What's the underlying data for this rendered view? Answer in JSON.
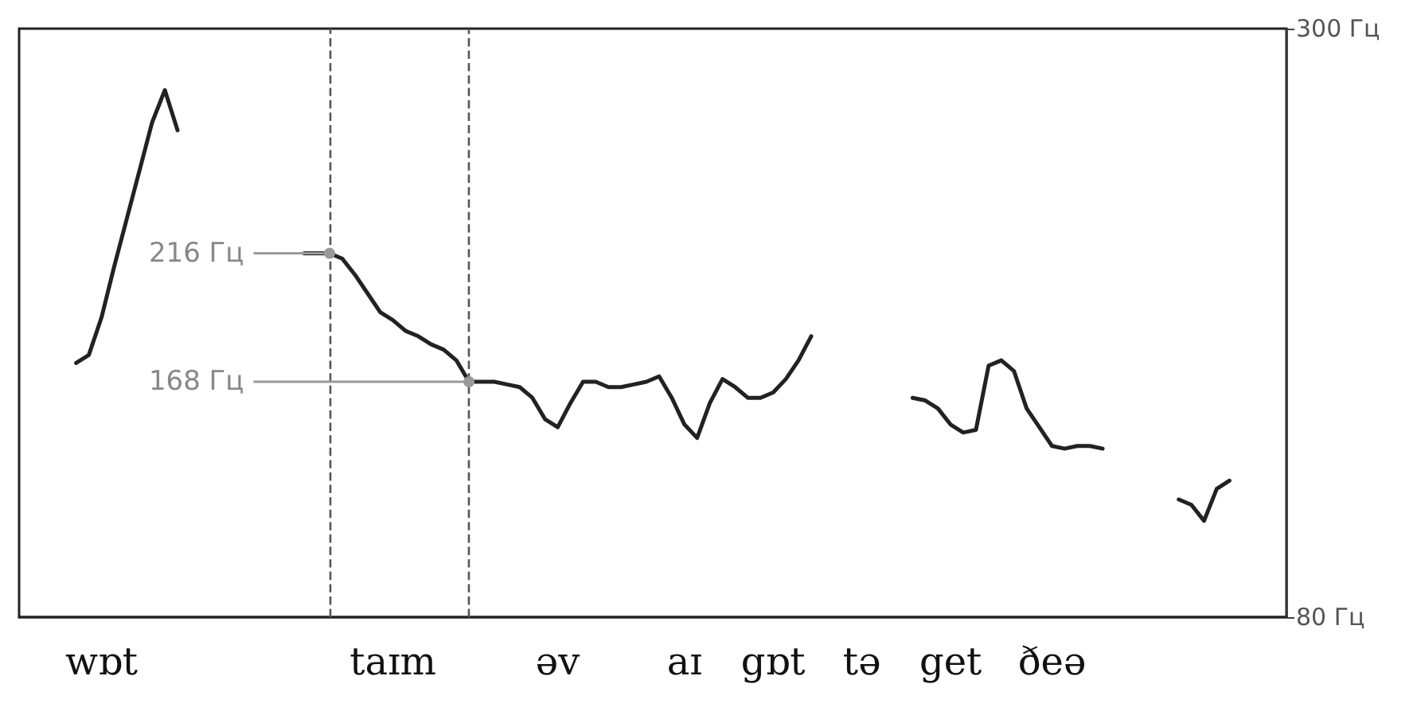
{
  "chart_data": {
    "type": "line",
    "categories": [
      null,
      null,
      null,
      null,
      null,
      null,
      "wɒt",
      null,
      null,
      null,
      null,
      null,
      null,
      null,
      null,
      null,
      null,
      null,
      null,
      null,
      null,
      null,
      null,
      null,
      null,
      null,
      null,
      null,
      null,
      "taɪm",
      null,
      null,
      null,
      null,
      null,
      null,
      null,
      null,
      null,
      null,
      null,
      null,
      "əv",
      null,
      null,
      null,
      null,
      null,
      null,
      null,
      null,
      null,
      "aɪ",
      null,
      null,
      null,
      null,
      null,
      null,
      "gɒt",
      null,
      null,
      null,
      null,
      null,
      null,
      "tə",
      null,
      null,
      null,
      null,
      null,
      null,
      "get",
      null,
      null,
      null,
      null,
      null,
      null,
      null,
      "ðeə",
      null,
      null,
      null,
      null,
      null,
      null,
      null,
      null,
      null,
      null,
      null,
      null,
      null,
      null,
      null,
      null,
      null,
      null
    ],
    "ylim": [
      80,
      300
    ],
    "yticks": [
      {
        "value": 80,
        "label": "80 Гц"
      },
      {
        "value": 300,
        "label": "300 Гц"
      }
    ],
    "series": [
      {
        "color": "#222222",
        "values": [
          null,
          null,
          null,
          null,
          175,
          178,
          192,
          211,
          229,
          247,
          265,
          277,
          262,
          null,
          null,
          null,
          null,
          null,
          null,
          null,
          null,
          null,
          216,
          216,
          216,
          214,
          208,
          201,
          194,
          191,
          187,
          185,
          182,
          180,
          176,
          168,
          168,
          168,
          167,
          166,
          162,
          154,
          151,
          160,
          168,
          168,
          166,
          166,
          167,
          168,
          170,
          162,
          152,
          147,
          160,
          169,
          166,
          162,
          162,
          164,
          169,
          176,
          185,
          null,
          null,
          null,
          null,
          null,
          null,
          null,
          162,
          161,
          158,
          152,
          149,
          150,
          174,
          176,
          172,
          158,
          151,
          144,
          143,
          144,
          144,
          143,
          null,
          null,
          null,
          null,
          null,
          124,
          122,
          116,
          128,
          131,
          null,
          null,
          null,
          null
        ],
        "value_labels": [
          null,
          null,
          null,
          null,
          null,
          null,
          null,
          null,
          null,
          null,
          null,
          null,
          null,
          null,
          null,
          null,
          null,
          null,
          null,
          null,
          null,
          null,
          null,
          null,
          "216 Гц",
          null,
          null,
          null,
          null,
          null,
          null,
          null,
          null,
          null,
          null,
          "168 Гц",
          null,
          null,
          null,
          null,
          null,
          null,
          null,
          null,
          null,
          null,
          null,
          null,
          null,
          null,
          null,
          null,
          null,
          null,
          null,
          null,
          null,
          null,
          null,
          null,
          null,
          null,
          null,
          null,
          null,
          null,
          null,
          null,
          null,
          null,
          null,
          null,
          null,
          null,
          null,
          null,
          null,
          null,
          null,
          null,
          null,
          null,
          null,
          null,
          null,
          null,
          null,
          null,
          null,
          null,
          null,
          null,
          null,
          null,
          null,
          null,
          null,
          null,
          null,
          null
        ]
      }
    ],
    "grid": false,
    "marker": "none",
    "line_style": "solid"
  }
}
